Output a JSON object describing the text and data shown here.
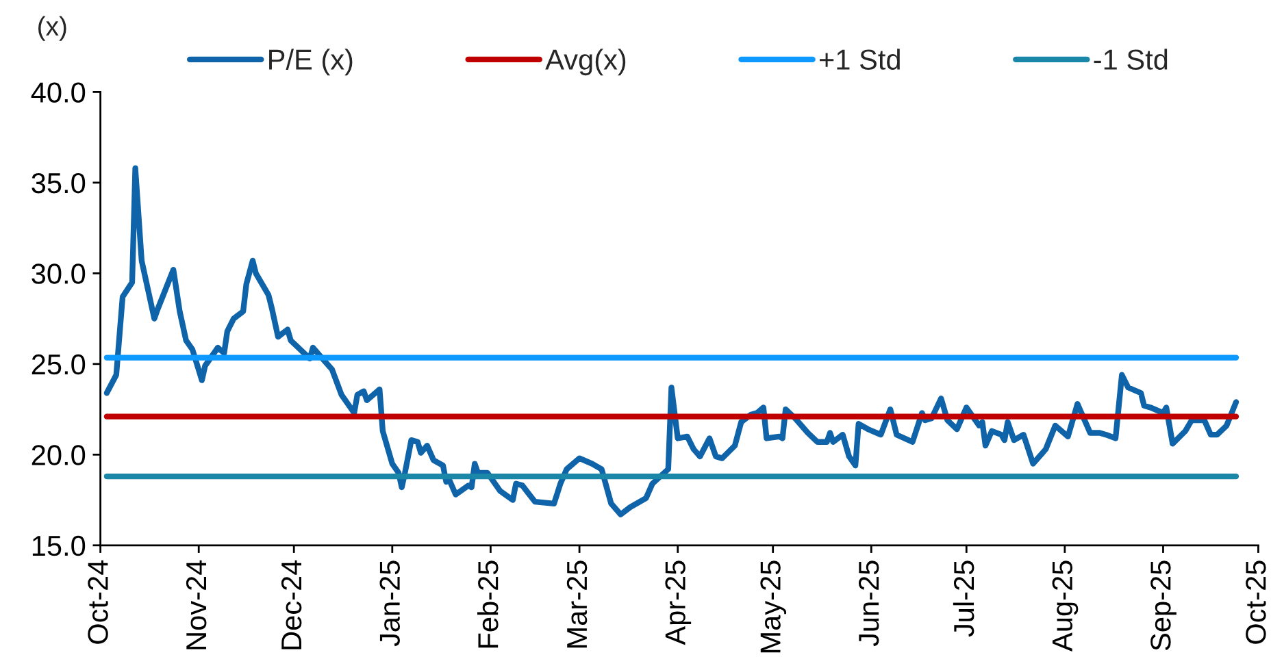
{
  "chart_data": {
    "type": "line",
    "ylabel": "(x)",
    "xlim": [
      "2024-10-01",
      "2025-10-01"
    ],
    "xticks": [
      {
        "value": "2024-10-01",
        "label": "Oct-24"
      },
      {
        "value": "2024-11-01",
        "label": "Nov-24"
      },
      {
        "value": "2024-12-01",
        "label": "Dec-24"
      },
      {
        "value": "2025-01-01",
        "label": "Jan-25"
      },
      {
        "value": "2025-02-01",
        "label": "Feb-25"
      },
      {
        "value": "2025-03-01",
        "label": "Mar-25"
      },
      {
        "value": "2025-04-01",
        "label": "Apr-25"
      },
      {
        "value": "2025-05-01",
        "label": "May-25"
      },
      {
        "value": "2025-06-01",
        "label": "Jun-25"
      },
      {
        "value": "2025-07-01",
        "label": "Jul-25"
      },
      {
        "value": "2025-08-01",
        "label": "Aug-25"
      },
      {
        "value": "2025-09-01",
        "label": "Sep-25"
      },
      {
        "value": "2025-10-01",
        "label": "Oct-25"
      }
    ],
    "ylim": [
      15,
      40
    ],
    "yticks": [
      {
        "value": 15,
        "label": "15.0"
      },
      {
        "value": 20,
        "label": "20.0"
      },
      {
        "value": 25,
        "label": "25.0"
      },
      {
        "value": 30,
        "label": "30.0"
      },
      {
        "value": 35,
        "label": "35.0"
      },
      {
        "value": 40,
        "label": "40.0"
      }
    ],
    "grid": false,
    "legend": "top",
    "marker": "none",
    "line_style": "solid",
    "series": [
      {
        "name": "P/E (x)",
        "color": "#0f63a8",
        "x": [
          "2024-10-03",
          "2024-10-06",
          "2024-10-08",
          "2024-10-11",
          "2024-10-12",
          "2024-10-14",
          "2024-10-18",
          "2024-10-19",
          "2024-10-24",
          "2024-10-26",
          "2024-10-28",
          "2024-10-30",
          "2024-11-02",
          "2024-11-03",
          "2024-11-07",
          "2024-11-09",
          "2024-11-10",
          "2024-11-12",
          "2024-11-15",
          "2024-11-16",
          "2024-11-18",
          "2024-11-19",
          "2024-11-23",
          "2024-11-24",
          "2024-11-26",
          "2024-11-29",
          "2024-11-30",
          "2024-12-06",
          "2024-12-07",
          "2024-12-10",
          "2024-12-13",
          "2024-12-16",
          "2024-12-20",
          "2024-12-21",
          "2024-12-23",
          "2024-12-24",
          "2024-12-28",
          "2024-12-29",
          "2025-01-01",
          "2025-01-03",
          "2025-01-04",
          "2025-01-05",
          "2025-01-07",
          "2025-01-09",
          "2025-01-10",
          "2025-01-12",
          "2025-01-14",
          "2025-01-17",
          "2025-01-18",
          "2025-01-19",
          "2025-01-21",
          "2025-01-25",
          "2025-01-26",
          "2025-01-27",
          "2025-01-28",
          "2025-01-31",
          "2025-02-04",
          "2025-02-08",
          "2025-02-09",
          "2025-02-11",
          "2025-02-15",
          "2025-02-21",
          "2025-02-23",
          "2025-02-25",
          "2025-03-01",
          "2025-03-05",
          "2025-03-08",
          "2025-03-11",
          "2025-03-14",
          "2025-03-17",
          "2025-03-22",
          "2025-03-24",
          "2025-03-29",
          "2025-03-30",
          "2025-04-01",
          "2025-04-04",
          "2025-04-06",
          "2025-04-08",
          "2025-04-11",
          "2025-04-13",
          "2025-04-15",
          "2025-04-19",
          "2025-04-21",
          "2025-04-24",
          "2025-04-26",
          "2025-04-28",
          "2025-04-29",
          "2025-05-03",
          "2025-05-04",
          "2025-05-05",
          "2025-05-08",
          "2025-05-12",
          "2025-05-15",
          "2025-05-18",
          "2025-05-19",
          "2025-05-20",
          "2025-05-23",
          "2025-05-25",
          "2025-05-27",
          "2025-05-28",
          "2025-05-31",
          "2025-06-04",
          "2025-06-07",
          "2025-06-09",
          "2025-06-14",
          "2025-06-17",
          "2025-06-18",
          "2025-06-20",
          "2025-06-23",
          "2025-06-25",
          "2025-06-28",
          "2025-07-01",
          "2025-07-05",
          "2025-07-06",
          "2025-07-07",
          "2025-07-09",
          "2025-07-12",
          "2025-07-13",
          "2025-07-14",
          "2025-07-16",
          "2025-07-19",
          "2025-07-22",
          "2025-07-26",
          "2025-07-29",
          "2025-08-02",
          "2025-08-05",
          "2025-08-09",
          "2025-08-12",
          "2025-08-14",
          "2025-08-17",
          "2025-08-19",
          "2025-08-21",
          "2025-08-25",
          "2025-08-26",
          "2025-08-28",
          "2025-09-01",
          "2025-09-02",
          "2025-09-04",
          "2025-09-08",
          "2025-09-10",
          "2025-09-14",
          "2025-09-16",
          "2025-09-18",
          "2025-09-21",
          "2025-09-24"
        ],
        "values": [
          23.4,
          24.4,
          28.7,
          29.5,
          35.8,
          30.7,
          27.5,
          28.0,
          30.2,
          27.9,
          26.3,
          25.8,
          24.1,
          24.9,
          25.9,
          25.6,
          26.8,
          27.5,
          27.9,
          29.4,
          30.7,
          30.0,
          28.8,
          28.1,
          26.5,
          26.9,
          26.3,
          25.3,
          25.9,
          25.3,
          24.7,
          23.3,
          22.3,
          23.3,
          23.5,
          23.0,
          23.6,
          21.3,
          19.5,
          19.0,
          18.2,
          19.0,
          20.8,
          20.7,
          20.1,
          20.5,
          19.7,
          19.4,
          18.5,
          18.6,
          17.8,
          18.3,
          18.2,
          19.5,
          19.0,
          19.0,
          18.0,
          17.5,
          18.4,
          18.3,
          17.4,
          17.3,
          18.4,
          19.2,
          19.8,
          19.5,
          19.2,
          17.3,
          16.7,
          17.1,
          17.6,
          18.4,
          19.2,
          23.7,
          20.9,
          21.0,
          20.3,
          19.9,
          20.9,
          19.9,
          19.8,
          20.5,
          21.8,
          22.2,
          22.3,
          22.6,
          20.9,
          21.0,
          20.9,
          22.5,
          22.0,
          21.2,
          20.7,
          20.7,
          21.2,
          20.7,
          21.1,
          19.9,
          19.4,
          21.7,
          21.4,
          21.1,
          22.5,
          21.1,
          20.7,
          22.3,
          21.9,
          22.0,
          23.1,
          21.9,
          21.4,
          22.6,
          21.6,
          21.8,
          20.5,
          21.3,
          21.1,
          20.8,
          21.8,
          20.8,
          21.1,
          19.5,
          20.3,
          21.6,
          21.0,
          22.8,
          21.2,
          21.2,
          21.1,
          20.9,
          24.4,
          23.7,
          23.4,
          22.7,
          22.6,
          22.3,
          22.6,
          20.6,
          21.3,
          21.9,
          21.9,
          21.1,
          21.1,
          21.6,
          22.9
        ]
      },
      {
        "name": "Avg(x)",
        "color": "#c00000",
        "x": [
          "2024-10-03",
          "2025-09-24"
        ],
        "values": [
          22.1,
          22.1
        ]
      },
      {
        "name": "+1 Std",
        "color": "#0d99ff",
        "x": [
          "2024-10-03",
          "2025-09-24"
        ],
        "values": [
          25.35,
          25.35
        ]
      },
      {
        "name": "-1 Std",
        "color": "#1a87a8",
        "x": [
          "2024-10-03",
          "2025-09-24"
        ],
        "values": [
          18.8,
          18.8
        ]
      }
    ]
  }
}
